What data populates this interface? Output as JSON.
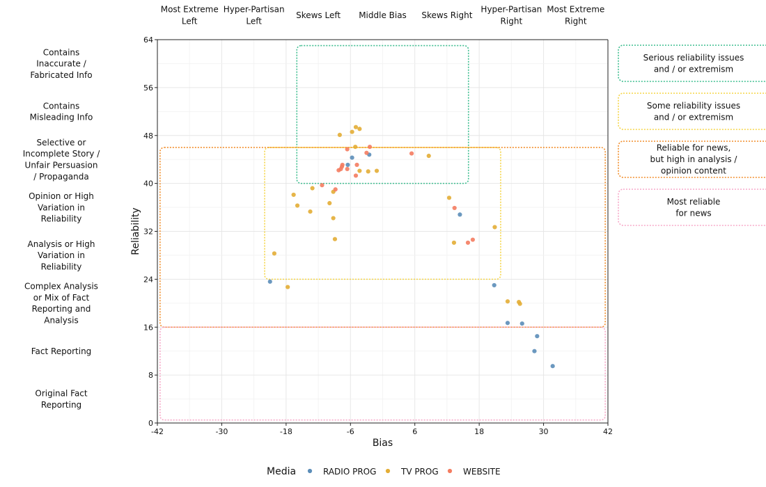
{
  "chart_data": {
    "type": "scatter",
    "xlabel": "Bias",
    "ylabel": "Reliability",
    "xlim": [
      -42,
      42
    ],
    "ylim": [
      0,
      64
    ],
    "xticks": [
      -42,
      -30,
      -18,
      -6,
      6,
      18,
      30,
      42
    ],
    "yticks": [
      0,
      8,
      16,
      24,
      32,
      40,
      48,
      56,
      64
    ],
    "grid": true,
    "legend_position": "bottom",
    "legend_title": "Media",
    "bias_labels": [
      {
        "text": "Most Extreme\nLeft",
        "x": -36
      },
      {
        "text": "Hyper-Partisan\nLeft",
        "x": -24
      },
      {
        "text": "Skews Left",
        "x": -12
      },
      {
        "text": "Middle Bias",
        "x": 0
      },
      {
        "text": "Skews Right",
        "x": 12
      },
      {
        "text": "Hyper-Partisan\nRight",
        "x": 24
      },
      {
        "text": "Most Extreme\nRight",
        "x": 36
      }
    ],
    "reliability_labels": [
      {
        "text": "Contains\nInaccurate /\nFabricated Info",
        "y": 60
      },
      {
        "text": "Contains\nMisleading Info",
        "y": 52
      },
      {
        "text": "Selective or\nIncomplete Story /\nUnfair Persuasion\n/ Propaganda",
        "y": 44
      },
      {
        "text": "Opinion or High\nVariation in\nReliability",
        "y": 36
      },
      {
        "text": "Analysis or High\nVariation in\nReliability",
        "y": 28
      },
      {
        "text": "Complex Analysis\nor Mix of Fact\nReporting and\nAnalysis",
        "y": 20
      },
      {
        "text": "Fact Reporting",
        "y": 12
      },
      {
        "text": "Original Fact\nReporting",
        "y": 4
      }
    ],
    "regions": [
      {
        "label": "Serious reliability issues\nand / or extremism",
        "color": "#3dbd8f",
        "x": [
          -16,
          16
        ],
        "y": [
          40,
          63
        ]
      },
      {
        "label": "Some reliability issues\nand / or extremism",
        "color": "#f5d547",
        "x": [
          -22,
          22
        ],
        "y": [
          24,
          46
        ]
      },
      {
        "label": "Reliable for news,\nbut high in analysis /\nopinion content",
        "color": "#f28e2b",
        "x": [
          -41.5,
          41.5
        ],
        "y": [
          16,
          46
        ]
      },
      {
        "label": "Most reliable\nfor news",
        "color": "#f7a8c8",
        "x": [
          -41.5,
          41.5
        ],
        "y": [
          0.5,
          16
        ]
      }
    ],
    "series": [
      {
        "name": "RADIO PROG",
        "color": "#5b8db8",
        "points": [
          [
            -21,
            23.6
          ],
          [
            -5.7,
            44.3
          ],
          [
            -6.5,
            43.1
          ],
          [
            -2.5,
            44.8
          ],
          [
            14.4,
            34.8
          ],
          [
            20.8,
            23
          ],
          [
            23.3,
            16.7
          ],
          [
            26,
            16.6
          ],
          [
            28.8,
            14.5
          ],
          [
            28.3,
            12
          ],
          [
            31.7,
            9.5
          ]
        ]
      },
      {
        "name": "TV PROG",
        "color": "#e3ad35",
        "points": [
          [
            -8,
            48.1
          ],
          [
            -5.7,
            48.6
          ],
          [
            -5,
            49.4
          ],
          [
            -4.3,
            49.1
          ],
          [
            -5.1,
            46.1
          ],
          [
            -4.3,
            42.1
          ],
          [
            -2.7,
            42
          ],
          [
            -1.1,
            42.1
          ],
          [
            8.6,
            44.6
          ],
          [
            12.4,
            37.6
          ],
          [
            13.3,
            30.1
          ],
          [
            20.9,
            32.7
          ],
          [
            -13.1,
            39.2
          ],
          [
            -9.9,
            36.7
          ],
          [
            -16.6,
            38.1
          ],
          [
            -15.9,
            36.3
          ],
          [
            -13.5,
            35.3
          ],
          [
            -9.2,
            38.6
          ],
          [
            -9.2,
            34.2
          ],
          [
            -8.9,
            30.7
          ],
          [
            -20.2,
            28.3
          ],
          [
            -17.7,
            22.7
          ],
          [
            23.3,
            20.3
          ],
          [
            25.4,
            20.2
          ],
          [
            25.6,
            19.9
          ]
        ]
      },
      {
        "name": "WEBSITE",
        "color": "#f47c60",
        "points": [
          [
            -6.6,
            45.7
          ],
          [
            -2.4,
            46.1
          ],
          [
            -3,
            45.1
          ],
          [
            -7.5,
            43.1
          ],
          [
            -7.6,
            42.8
          ],
          [
            -7.8,
            42.4
          ],
          [
            -8.2,
            42.2
          ],
          [
            -6.6,
            42.4
          ],
          [
            -4.8,
            43.1
          ],
          [
            -5,
            41.3
          ],
          [
            -11.3,
            39.7
          ],
          [
            -8.8,
            39
          ],
          [
            5.4,
            45
          ],
          [
            13.4,
            35.9
          ],
          [
            15.9,
            30.1
          ],
          [
            16.8,
            30.6
          ]
        ]
      }
    ]
  }
}
